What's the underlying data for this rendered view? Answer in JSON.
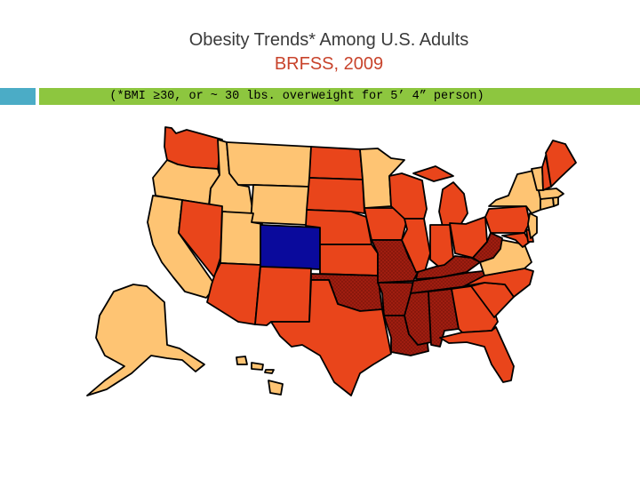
{
  "title_line1": "Obesity Trends* Among U.S. Adults",
  "title_line2": "BRFSS, 2009",
  "subtitle": "(*BMI ≥30, or ~ 30 lbs. overweight for 5’ 4” person)",
  "colors": {
    "title_line1": "#3a3a3a",
    "title_line2": "#c8432b",
    "accent_teal": "#4bacc6",
    "accent_green": "#8dc63f",
    "class_20_24": "#fec473",
    "class_25_29": "#e9451b",
    "class_30_plus": "#9f1d10",
    "class_15_19": "#0a0a9c",
    "state_border": "#000000"
  },
  "map": {
    "states": [
      {
        "id": "WA",
        "class": "25_29"
      },
      {
        "id": "OR",
        "class": "20_24"
      },
      {
        "id": "CA",
        "class": "20_24"
      },
      {
        "id": "ID",
        "class": "20_24"
      },
      {
        "id": "NV",
        "class": "25_29"
      },
      {
        "id": "MT",
        "class": "20_24"
      },
      {
        "id": "WY",
        "class": "20_24"
      },
      {
        "id": "UT",
        "class": "20_24"
      },
      {
        "id": "AZ",
        "class": "25_29"
      },
      {
        "id": "CO",
        "class": "15_19"
      },
      {
        "id": "NM",
        "class": "25_29"
      },
      {
        "id": "ND",
        "class": "25_29"
      },
      {
        "id": "SD",
        "class": "25_29"
      },
      {
        "id": "NE",
        "class": "25_29"
      },
      {
        "id": "KS",
        "class": "25_29"
      },
      {
        "id": "OK",
        "class": "30_plus"
      },
      {
        "id": "TX",
        "class": "25_29"
      },
      {
        "id": "MN",
        "class": "20_24"
      },
      {
        "id": "IA",
        "class": "25_29"
      },
      {
        "id": "MO",
        "class": "30_plus"
      },
      {
        "id": "AR",
        "class": "30_plus"
      },
      {
        "id": "LA",
        "class": "30_plus"
      },
      {
        "id": "WI",
        "class": "25_29"
      },
      {
        "id": "IL",
        "class": "25_29"
      },
      {
        "id": "MI",
        "class": "25_29"
      },
      {
        "id": "IN",
        "class": "25_29"
      },
      {
        "id": "OH",
        "class": "25_29"
      },
      {
        "id": "KY",
        "class": "30_plus"
      },
      {
        "id": "TN",
        "class": "30_plus"
      },
      {
        "id": "MS",
        "class": "30_plus"
      },
      {
        "id": "AL",
        "class": "30_plus"
      },
      {
        "id": "GA",
        "class": "25_29"
      },
      {
        "id": "FL",
        "class": "25_29"
      },
      {
        "id": "SC",
        "class": "25_29"
      },
      {
        "id": "NC",
        "class": "25_29"
      },
      {
        "id": "VA",
        "class": "20_24"
      },
      {
        "id": "WV",
        "class": "30_plus"
      },
      {
        "id": "PA",
        "class": "25_29"
      },
      {
        "id": "NY",
        "class": "20_24"
      },
      {
        "id": "MD",
        "class": "25_29"
      },
      {
        "id": "DE",
        "class": "25_29"
      },
      {
        "id": "NJ",
        "class": "20_24"
      },
      {
        "id": "CT",
        "class": "20_24"
      },
      {
        "id": "RI",
        "class": "20_24"
      },
      {
        "id": "MA",
        "class": "20_24"
      },
      {
        "id": "VT",
        "class": "20_24"
      },
      {
        "id": "NH",
        "class": "25_29"
      },
      {
        "id": "ME",
        "class": "25_29"
      },
      {
        "id": "AK",
        "class": "20_24"
      },
      {
        "id": "HI",
        "class": "20_24"
      }
    ]
  }
}
